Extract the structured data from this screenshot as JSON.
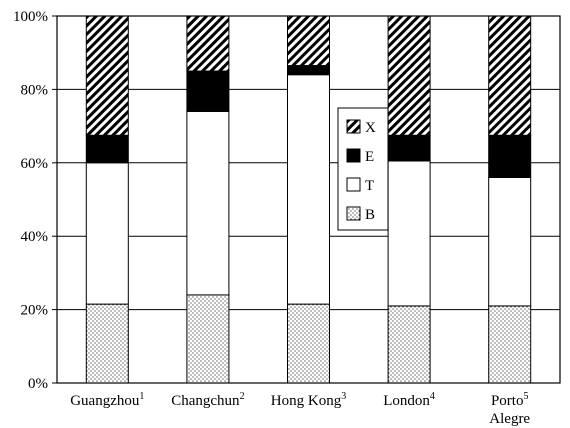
{
  "chart_data": {
    "type": "bar",
    "stacked": true,
    "categories": [
      {
        "name": "Guangzhou",
        "sup": "1",
        "line2": ""
      },
      {
        "name": "Changchun",
        "sup": "2",
        "line2": ""
      },
      {
        "name": "Hong Kong",
        "sup": "3",
        "line2": ""
      },
      {
        "name": "London",
        "sup": "4",
        "line2": ""
      },
      {
        "name": "Porto",
        "sup": "5",
        "line2": "Alegre"
      }
    ],
    "series": [
      {
        "name": "B",
        "pattern": "dots",
        "values": [
          21.5,
          24,
          21.5,
          21,
          21
        ]
      },
      {
        "name": "T",
        "pattern": "white",
        "values": [
          38.5,
          50,
          62.5,
          39.5,
          35
        ]
      },
      {
        "name": "E",
        "pattern": "black",
        "values": [
          7.5,
          11,
          2.5,
          7,
          11.5
        ]
      },
      {
        "name": "X",
        "pattern": "hatch",
        "values": [
          32.5,
          15,
          13.5,
          32.5,
          32.5
        ]
      }
    ],
    "legend_order": [
      "X",
      "E",
      "T",
      "B"
    ],
    "legend_position": "center-right",
    "ylim": [
      0,
      100
    ],
    "yticks": [
      0,
      20,
      40,
      60,
      80,
      100
    ],
    "ytick_labels": [
      "0%",
      "20%",
      "40%",
      "60%",
      "80%",
      "100%"
    ],
    "grid": "horizontal",
    "title": "",
    "xlabel": "",
    "ylabel": "",
    "colors": {
      "axis": "#000000",
      "fill_light": "#ffffff",
      "fill_dark": "#000000"
    }
  }
}
